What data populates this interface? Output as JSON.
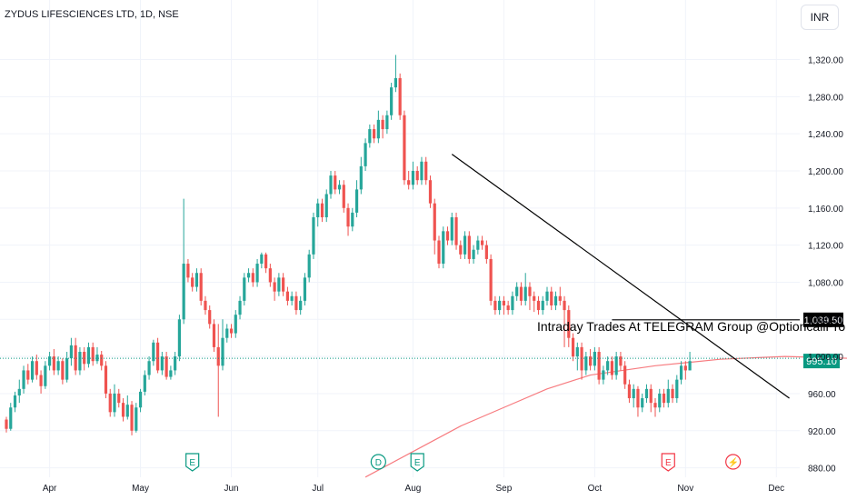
{
  "header": {
    "symbol_title": "ZYDUS LIFESCIENCES LTD, 1D, NSE",
    "currency_label": "INR"
  },
  "colors": {
    "up": "#26a69a",
    "down": "#ef5350",
    "ma": "#f77c80",
    "trendline": "#000000",
    "last_price_bg": "#089981",
    "level_bg": "#000000"
  },
  "chart_data": {
    "type": "candlestick",
    "ylim": [
      860,
      1345
    ],
    "y_ticks": [
      880,
      920,
      960,
      1000,
      1040,
      1080,
      1120,
      1160,
      1200,
      1240,
      1280,
      1320
    ],
    "y_tick_labels": [
      "880.00",
      "920.00",
      "960.00",
      "1,000.00",
      "1,040.00",
      "1,080.00",
      "1,120.00",
      "1,160.00",
      "1,200.00",
      "1,240.00",
      "1,280.00",
      "1,320.00"
    ],
    "x_ticks": [
      {
        "label": "Apr",
        "index": 10
      },
      {
        "label": "May",
        "index": 31
      },
      {
        "label": "Jun",
        "index": 52
      },
      {
        "label": "Jul",
        "index": 72
      },
      {
        "label": "Aug",
        "index": 94
      },
      {
        "label": "Sep",
        "index": 115
      },
      {
        "label": "Oct",
        "index": 136
      },
      {
        "label": "Nov",
        "index": 157
      },
      {
        "label": "Dec",
        "index": 178
      }
    ],
    "candles": [
      [
        932,
        922,
        935,
        918
      ],
      [
        922,
        945,
        950,
        920
      ],
      [
        945,
        958,
        962,
        940
      ],
      [
        958,
        965,
        975,
        950
      ],
      [
        965,
        985,
        990,
        960
      ],
      [
        985,
        975,
        992,
        970
      ],
      [
        975,
        995,
        1000,
        972
      ],
      [
        995,
        980,
        1002,
        975
      ],
      [
        980,
        968,
        985,
        960
      ],
      [
        968,
        990,
        995,
        965
      ],
      [
        990,
        1000,
        1005,
        985
      ],
      [
        1000,
        985,
        1008,
        980
      ],
      [
        985,
        995,
        1000,
        980
      ],
      [
        995,
        975,
        998,
        970
      ],
      [
        975,
        998,
        1005,
        972
      ],
      [
        998,
        1012,
        1020,
        990
      ],
      [
        1012,
        985,
        1020,
        980
      ],
      [
        985,
        1005,
        1010,
        980
      ],
      [
        1005,
        992,
        1010,
        985
      ],
      [
        992,
        1010,
        1015,
        988
      ],
      [
        1010,
        995,
        1015,
        990
      ],
      [
        995,
        1002,
        1010,
        992
      ],
      [
        1002,
        990,
        1006,
        985
      ],
      [
        990,
        960,
        995,
        955
      ],
      [
        960,
        940,
        965,
        935
      ],
      [
        940,
        960,
        970,
        935
      ],
      [
        960,
        950,
        965,
        945
      ],
      [
        950,
        935,
        955,
        930
      ],
      [
        935,
        948,
        958,
        932
      ],
      [
        948,
        920,
        952,
        915
      ],
      [
        920,
        945,
        950,
        918
      ],
      [
        945,
        962,
        965,
        940
      ],
      [
        962,
        980,
        985,
        958
      ],
      [
        980,
        995,
        1000,
        975
      ],
      [
        995,
        1015,
        1018,
        990
      ],
      [
        1015,
        985,
        1020,
        982
      ],
      [
        985,
        1000,
        1005,
        980
      ],
      [
        1000,
        978,
        1005,
        975
      ],
      [
        978,
        985,
        990,
        975
      ],
      [
        985,
        1000,
        1005,
        980
      ],
      [
        1000,
        1040,
        1045,
        995
      ],
      [
        1040,
        1100,
        1170,
        1035
      ],
      [
        1100,
        1085,
        1105,
        1080
      ],
      [
        1085,
        1075,
        1090,
        1070
      ],
      [
        1075,
        1090,
        1095,
        1070
      ],
      [
        1090,
        1060,
        1095,
        1055
      ],
      [
        1060,
        1050,
        1065,
        1045
      ],
      [
        1050,
        1035,
        1055,
        1030
      ],
      [
        1035,
        1010,
        1040,
        1005
      ],
      [
        1010,
        990,
        1035,
        935
      ],
      [
        990,
        1020,
        1040,
        985
      ],
      [
        1020,
        1030,
        1035,
        1015
      ],
      [
        1030,
        1025,
        1035,
        1020
      ],
      [
        1025,
        1045,
        1050,
        1020
      ],
      [
        1045,
        1060,
        1065,
        1040
      ],
      [
        1060,
        1085,
        1090,
        1055
      ],
      [
        1085,
        1090,
        1095,
        1080
      ],
      [
        1090,
        1080,
        1095,
        1075
      ],
      [
        1080,
        1100,
        1105,
        1075
      ],
      [
        1100,
        1110,
        1112,
        1095
      ],
      [
        1110,
        1095,
        1112,
        1090
      ],
      [
        1095,
        1080,
        1100,
        1075
      ],
      [
        1080,
        1070,
        1085,
        1060
      ],
      [
        1070,
        1085,
        1090,
        1065
      ],
      [
        1085,
        1070,
        1090,
        1065
      ],
      [
        1070,
        1060,
        1075,
        1055
      ],
      [
        1060,
        1065,
        1070,
        1055
      ],
      [
        1065,
        1050,
        1070,
        1045
      ],
      [
        1050,
        1060,
        1065,
        1045
      ],
      [
        1060,
        1085,
        1090,
        1055
      ],
      [
        1085,
        1110,
        1115,
        1080
      ],
      [
        1110,
        1150,
        1155,
        1105
      ],
      [
        1150,
        1165,
        1170,
        1140
      ],
      [
        1165,
        1150,
        1170,
        1145
      ],
      [
        1150,
        1175,
        1180,
        1145
      ],
      [
        1175,
        1195,
        1200,
        1170
      ],
      [
        1195,
        1180,
        1200,
        1175
      ],
      [
        1180,
        1185,
        1190,
        1175
      ],
      [
        1185,
        1160,
        1190,
        1155
      ],
      [
        1160,
        1140,
        1165,
        1130
      ],
      [
        1140,
        1155,
        1160,
        1135
      ],
      [
        1155,
        1180,
        1190,
        1150
      ],
      [
        1180,
        1205,
        1215,
        1175
      ],
      [
        1205,
        1230,
        1235,
        1200
      ],
      [
        1230,
        1245,
        1250,
        1225
      ],
      [
        1245,
        1235,
        1250,
        1230
      ],
      [
        1235,
        1255,
        1265,
        1230
      ],
      [
        1255,
        1245,
        1260,
        1235
      ],
      [
        1245,
        1260,
        1265,
        1240
      ],
      [
        1260,
        1290,
        1295,
        1255
      ],
      [
        1290,
        1300,
        1325,
        1285
      ],
      [
        1300,
        1260,
        1305,
        1255
      ],
      [
        1260,
        1190,
        1265,
        1185
      ],
      [
        1190,
        1185,
        1200,
        1180
      ],
      [
        1185,
        1200,
        1210,
        1180
      ],
      [
        1200,
        1190,
        1205,
        1185
      ],
      [
        1190,
        1210,
        1215,
        1185
      ],
      [
        1210,
        1190,
        1215,
        1185
      ],
      [
        1190,
        1165,
        1195,
        1160
      ],
      [
        1165,
        1125,
        1170,
        1110
      ],
      [
        1125,
        1100,
        1130,
        1095
      ],
      [
        1100,
        1135,
        1140,
        1095
      ],
      [
        1135,
        1125,
        1140,
        1120
      ],
      [
        1125,
        1150,
        1155,
        1120
      ],
      [
        1150,
        1120,
        1155,
        1115
      ],
      [
        1120,
        1110,
        1125,
        1105
      ],
      [
        1110,
        1130,
        1135,
        1105
      ],
      [
        1130,
        1105,
        1135,
        1100
      ],
      [
        1105,
        1115,
        1120,
        1100
      ],
      [
        1115,
        1125,
        1130,
        1110
      ],
      [
        1125,
        1120,
        1130,
        1115
      ],
      [
        1120,
        1105,
        1125,
        1100
      ],
      [
        1105,
        1060,
        1110,
        1055
      ],
      [
        1060,
        1050,
        1065,
        1045
      ],
      [
        1050,
        1060,
        1065,
        1045
      ],
      [
        1060,
        1055,
        1065,
        1045
      ],
      [
        1055,
        1050,
        1060,
        1045
      ],
      [
        1050,
        1065,
        1070,
        1045
      ],
      [
        1065,
        1075,
        1080,
        1060
      ],
      [
        1075,
        1060,
        1080,
        1055
      ],
      [
        1060,
        1075,
        1090,
        1055
      ],
      [
        1075,
        1065,
        1080,
        1050
      ],
      [
        1065,
        1060,
        1070,
        1048
      ],
      [
        1060,
        1050,
        1065,
        1045
      ],
      [
        1050,
        1060,
        1065,
        1045
      ],
      [
        1060,
        1070,
        1075,
        1055
      ],
      [
        1070,
        1055,
        1075,
        1050
      ],
      [
        1055,
        1065,
        1070,
        1050
      ],
      [
        1065,
        1060,
        1075,
        1055
      ],
      [
        1060,
        1050,
        1065,
        1010
      ],
      [
        1050,
        1020,
        1055,
        1010
      ],
      [
        1020,
        1000,
        1025,
        995
      ],
      [
        1000,
        1010,
        1015,
        985
      ],
      [
        1010,
        985,
        1015,
        975
      ],
      [
        985,
        1000,
        1005,
        980
      ],
      [
        1000,
        990,
        1008,
        985
      ],
      [
        990,
        1005,
        1010,
        985
      ],
      [
        1005,
        975,
        1010,
        970
      ],
      [
        975,
        985,
        990,
        970
      ],
      [
        985,
        995,
        1000,
        980
      ],
      [
        995,
        980,
        1000,
        975
      ],
      [
        980,
        1000,
        1005,
        975
      ],
      [
        1000,
        990,
        1005,
        985
      ],
      [
        990,
        970,
        995,
        965
      ],
      [
        970,
        955,
        975,
        950
      ],
      [
        955,
        965,
        970,
        945
      ],
      [
        965,
        945,
        968,
        935
      ],
      [
        945,
        955,
        960,
        940
      ],
      [
        955,
        965,
        970,
        950
      ],
      [
        965,
        950,
        970,
        940
      ],
      [
        950,
        945,
        955,
        935
      ],
      [
        945,
        960,
        965,
        940
      ],
      [
        960,
        950,
        965,
        945
      ],
      [
        950,
        965,
        975,
        945
      ],
      [
        965,
        955,
        970,
        950
      ],
      [
        955,
        975,
        980,
        950
      ],
      [
        975,
        990,
        995,
        970
      ],
      [
        990,
        985,
        995,
        975
      ],
      [
        985,
        995,
        1005,
        985
      ]
    ],
    "ma_points": [
      [
        83,
        870
      ],
      [
        95,
        900
      ],
      [
        105,
        925
      ],
      [
        115,
        945
      ],
      [
        125,
        965
      ],
      [
        135,
        980
      ],
      [
        150,
        990
      ],
      [
        165,
        997
      ],
      [
        180,
        1000
      ],
      [
        195,
        998
      ],
      [
        200,
        995
      ]
    ],
    "trendline": {
      "from": [
        103,
        1218
      ],
      "to": [
        181,
        955
      ]
    },
    "horizontal_level": {
      "value": 1039.5,
      "label": "1,039.50",
      "from_index": 140
    },
    "last_price": {
      "value": 995.1,
      "label": "995.10"
    },
    "dotted_ref_level": 998,
    "annotation_text": "Intraday Trades At TELEGRAM Group @OptioncallPro",
    "event_markers": [
      {
        "label": "E",
        "index": 43,
        "color": "#089981",
        "style": "earnings"
      },
      {
        "label": "D",
        "index": 86,
        "color": "#089981",
        "style": "dividend"
      },
      {
        "label": "E",
        "index": 95,
        "color": "#089981",
        "style": "earnings"
      },
      {
        "label": "E",
        "index": 153,
        "color": "#f23645",
        "style": "earnings"
      },
      {
        "label": "⚡",
        "index": 168,
        "color": "#f23645",
        "style": "split"
      }
    ]
  }
}
